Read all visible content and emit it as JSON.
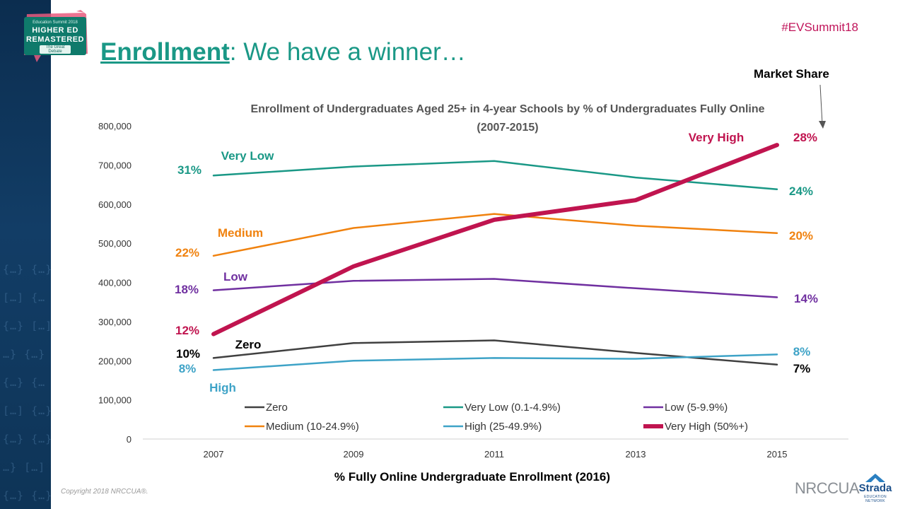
{
  "header": {
    "hashtag": "#EVSummit18",
    "title_key": "Enrollment",
    "title_rest": ": We have a winner…",
    "market_share_label": "Market Share"
  },
  "logo": {
    "line1": "Education Summit 2018",
    "line2": "HIGHER ED",
    "line3": "REMASTERED",
    "line4": "The Great Debate"
  },
  "footer": {
    "copyright": "Copyright 2018 NRCCUA®.",
    "nrccua": "NRCCUA",
    "strada": "Strada",
    "strada_sub": "EDUCATION NETWORK"
  },
  "colors": {
    "zero": "#404040",
    "very_low": "#1a9886",
    "low": "#7030a0",
    "medium": "#f0820f",
    "high": "#3ea3c7",
    "very_high": "#c0144f"
  },
  "chart_data": {
    "type": "line",
    "title_line1": "Enrollment of Undergraduates Aged 25+ in 4-year Schools by % of Undergraduates Fully Online",
    "title_line2": "(2007-2015)",
    "xlabel": "% Fully Online Undergraduate Enrollment (2016)",
    "ylabel": "",
    "x": [
      "2007",
      "2009",
      "2011",
      "2013",
      "2015"
    ],
    "ylim": [
      0,
      800000
    ],
    "yticks": [
      "0",
      "100,000",
      "200,000",
      "300,000",
      "400,000",
      "500,000",
      "600,000",
      "700,000",
      "800,000"
    ],
    "legend_position": "bottom",
    "series": [
      {
        "key": "zero",
        "name": "Zero",
        "legend": "Zero",
        "color": "#404040",
        "width": 2.5,
        "values": [
          207000,
          245000,
          252000,
          220000,
          190000
        ],
        "start_label": "10%",
        "end_label": "7%"
      },
      {
        "key": "very_low",
        "name": "Very Low",
        "legend": "Very Low (0.1-4.9%)",
        "color": "#1a9886",
        "width": 2.5,
        "values": [
          673000,
          696000,
          710000,
          668000,
          638000
        ],
        "start_label": "31%",
        "end_label": "24%"
      },
      {
        "key": "low",
        "name": "Low",
        "legend": "Low (5-9.9%)",
        "color": "#7030a0",
        "width": 2.5,
        "values": [
          380000,
          404000,
          409000,
          385000,
          362000
        ],
        "start_label": "18%",
        "end_label": "14%"
      },
      {
        "key": "medium",
        "name": "Medium",
        "legend": "Medium (10-24.9%)",
        "color": "#f0820f",
        "width": 2.5,
        "values": [
          468000,
          539000,
          575000,
          545000,
          526000
        ],
        "start_label": "22%",
        "end_label": "20%"
      },
      {
        "key": "high",
        "name": "High",
        "legend": "High (25-49.9%)",
        "color": "#3ea3c7",
        "width": 2.5,
        "values": [
          176000,
          200000,
          207000,
          205000,
          216000
        ],
        "start_label": "8%",
        "end_label": "8%"
      },
      {
        "key": "very_high",
        "name": "Very High",
        "legend": "Very High (50%+)",
        "color": "#c0144f",
        "width": 6,
        "values": [
          268000,
          441000,
          560000,
          610000,
          751000
        ],
        "start_label": "12%",
        "end_label": "28%"
      }
    ]
  }
}
